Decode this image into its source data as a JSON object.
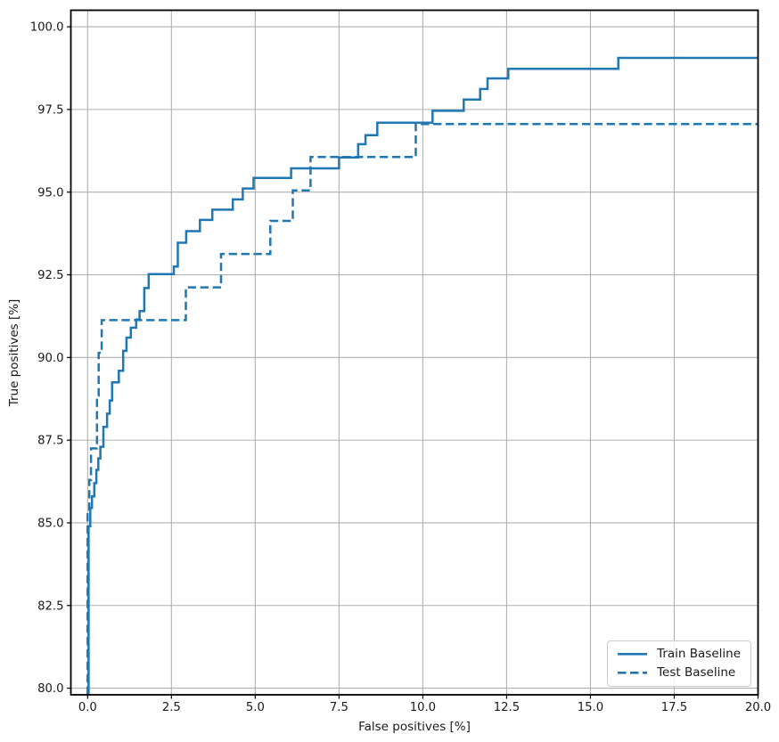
{
  "chart_data": {
    "type": "line",
    "subtype": "step",
    "title": "",
    "xlabel": "False positives [%]",
    "ylabel": "True positives [%]",
    "xlim": [
      -0.5,
      20
    ],
    "ylim": [
      79.8,
      100.5
    ],
    "grid": true,
    "legend_position": "lower right",
    "colors": {
      "line": "#1f77b4",
      "grid": "#b0b0b0",
      "spine": "#000000",
      "text": "#1a1a1a",
      "background": "#ffffff"
    },
    "xticks": {
      "values": [
        0,
        2.5,
        5,
        7.5,
        10,
        12.5,
        15,
        17.5,
        20
      ],
      "labels": [
        "0.0",
        "2.5",
        "5.0",
        "7.5",
        "10.0",
        "12.5",
        "15.0",
        "17.5",
        "20.0"
      ]
    },
    "yticks": {
      "values": [
        80,
        82.5,
        85,
        87.5,
        90,
        92.5,
        95,
        97.5,
        100
      ],
      "labels": [
        "80.0",
        "82.5",
        "85.0",
        "87.5",
        "90.0",
        "92.5",
        "95.0",
        "97.5",
        "100.0"
      ]
    },
    "series": [
      {
        "name": "Train Baseline",
        "style": "solid",
        "points": [
          [
            0.03,
            79.8
          ],
          [
            0.03,
            84.9
          ],
          [
            0.08,
            84.9
          ],
          [
            0.08,
            85.45
          ],
          [
            0.13,
            85.45
          ],
          [
            0.13,
            85.8
          ],
          [
            0.2,
            85.8
          ],
          [
            0.2,
            86.2
          ],
          [
            0.26,
            86.2
          ],
          [
            0.26,
            86.6
          ],
          [
            0.32,
            86.6
          ],
          [
            0.32,
            86.95
          ],
          [
            0.38,
            86.95
          ],
          [
            0.38,
            87.3
          ],
          [
            0.47,
            87.3
          ],
          [
            0.47,
            87.9
          ],
          [
            0.58,
            87.9
          ],
          [
            0.58,
            88.3
          ],
          [
            0.66,
            88.3
          ],
          [
            0.66,
            88.7
          ],
          [
            0.73,
            88.7
          ],
          [
            0.73,
            89.25
          ],
          [
            0.93,
            89.25
          ],
          [
            0.93,
            89.6
          ],
          [
            1.06,
            89.6
          ],
          [
            1.06,
            90.2
          ],
          [
            1.16,
            90.2
          ],
          [
            1.16,
            90.6
          ],
          [
            1.29,
            90.6
          ],
          [
            1.29,
            90.9
          ],
          [
            1.45,
            90.9
          ],
          [
            1.45,
            91.15
          ],
          [
            1.55,
            91.15
          ],
          [
            1.55,
            91.4
          ],
          [
            1.69,
            91.4
          ],
          [
            1.69,
            92.1
          ],
          [
            1.82,
            92.1
          ],
          [
            1.82,
            92.52
          ],
          [
            2.57,
            92.52
          ],
          [
            2.57,
            92.75
          ],
          [
            2.69,
            92.75
          ],
          [
            2.69,
            93.47
          ],
          [
            2.94,
            93.47
          ],
          [
            2.94,
            93.82
          ],
          [
            3.35,
            93.82
          ],
          [
            3.35,
            94.16
          ],
          [
            3.72,
            94.16
          ],
          [
            3.72,
            94.47
          ],
          [
            4.33,
            94.47
          ],
          [
            4.33,
            94.78
          ],
          [
            4.63,
            94.78
          ],
          [
            4.63,
            95.11
          ],
          [
            4.95,
            95.11
          ],
          [
            4.95,
            95.43
          ],
          [
            6.07,
            95.43
          ],
          [
            6.07,
            95.72
          ],
          [
            7.5,
            95.72
          ],
          [
            7.5,
            96.05
          ],
          [
            8.07,
            96.05
          ],
          [
            8.07,
            96.45
          ],
          [
            8.29,
            96.45
          ],
          [
            8.29,
            96.72
          ],
          [
            8.64,
            96.72
          ],
          [
            8.64,
            97.1
          ],
          [
            10.29,
            97.1
          ],
          [
            10.29,
            97.46
          ],
          [
            11.22,
            97.46
          ],
          [
            11.22,
            97.8
          ],
          [
            11.71,
            97.8
          ],
          [
            11.71,
            98.12
          ],
          [
            11.93,
            98.12
          ],
          [
            11.93,
            98.44
          ],
          [
            12.55,
            98.44
          ],
          [
            12.55,
            98.73
          ],
          [
            15.83,
            98.73
          ],
          [
            15.83,
            99.06
          ],
          [
            20,
            99.06
          ]
        ]
      },
      {
        "name": "Test Baseline",
        "style": "dashed",
        "points": [
          [
            0.0,
            79.8
          ],
          [
            0.0,
            85.3
          ],
          [
            0.05,
            85.3
          ],
          [
            0.05,
            86.3
          ],
          [
            0.1,
            86.3
          ],
          [
            0.1,
            87.25
          ],
          [
            0.28,
            87.25
          ],
          [
            0.28,
            88.85
          ],
          [
            0.33,
            88.85
          ],
          [
            0.33,
            90.14
          ],
          [
            0.42,
            90.14
          ],
          [
            0.42,
            91.13
          ],
          [
            2.93,
            91.13
          ],
          [
            2.93,
            92.12
          ],
          [
            3.98,
            92.12
          ],
          [
            3.98,
            93.13
          ],
          [
            5.45,
            93.13
          ],
          [
            5.45,
            94.13
          ],
          [
            6.12,
            94.13
          ],
          [
            6.12,
            95.05
          ],
          [
            6.65,
            95.05
          ],
          [
            6.65,
            96.06
          ],
          [
            9.79,
            96.06
          ],
          [
            9.79,
            97.06
          ],
          [
            20,
            97.06
          ]
        ]
      }
    ]
  }
}
